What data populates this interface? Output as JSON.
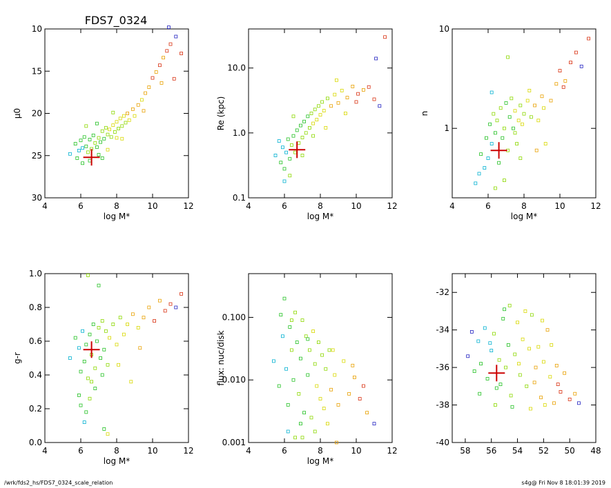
{
  "title": "FDS7_0324",
  "footer_left": "/wrk/fds2_hs/FDS7_0324_scale_relation",
  "footer_right": "s4g@  Fri Nov  8 18:01:39 2019",
  "chart_data": [
    {
      "type": "scatter",
      "title": "FDS7_0324",
      "xlabel": "log M*",
      "ylabel": "μ0",
      "xlim": [
        4,
        12
      ],
      "ylim": [
        30,
        10
      ],
      "xticks": [
        "4",
        "6",
        "8",
        "10",
        "12"
      ],
      "yticks": [
        "10",
        "15",
        "20",
        "25",
        "30"
      ],
      "target": {
        "x": 6.6,
        "y": 25.2
      },
      "points": [
        [
          5.4,
          24.8
        ],
        [
          5.7,
          23.6
        ],
        [
          5.9,
          24.4
        ],
        [
          6.0,
          23.2
        ],
        [
          6.1,
          24.1
        ],
        [
          6.2,
          22.8
        ],
        [
          6.3,
          23.9
        ],
        [
          6.4,
          24.6
        ],
        [
          6.5,
          23.1
        ],
        [
          6.6,
          24.2
        ],
        [
          6.7,
          22.6
        ],
        [
          6.8,
          23.5
        ],
        [
          6.9,
          24.0
        ],
        [
          7.0,
          22.9
        ],
        [
          7.1,
          23.4
        ],
        [
          7.2,
          22.1
        ],
        [
          7.3,
          23.0
        ],
        [
          7.4,
          21.7
        ],
        [
          7.5,
          22.5
        ],
        [
          7.6,
          21.9
        ],
        [
          7.7,
          22.8
        ],
        [
          7.8,
          21.4
        ],
        [
          7.9,
          22.2
        ],
        [
          8.0,
          21.0
        ],
        [
          8.1,
          21.8
        ],
        [
          8.2,
          20.6
        ],
        [
          8.3,
          21.5
        ],
        [
          8.4,
          20.3
        ],
        [
          8.5,
          21.1
        ],
        [
          8.6,
          20.0
        ],
        [
          8.7,
          20.8
        ],
        [
          8.9,
          19.5
        ],
        [
          9.0,
          20.3
        ],
        [
          9.2,
          19.0
        ],
        [
          9.4,
          18.4
        ],
        [
          9.6,
          17.6
        ],
        [
          9.8,
          16.9
        ],
        [
          10.0,
          15.8
        ],
        [
          10.2,
          15.1
        ],
        [
          10.4,
          14.3
        ],
        [
          10.6,
          13.4
        ],
        [
          10.8,
          12.6
        ],
        [
          11.0,
          11.8
        ],
        [
          11.3,
          10.9
        ],
        [
          11.6,
          12.9
        ],
        [
          10.9,
          9.8
        ],
        [
          11.2,
          15.9
        ],
        [
          6.3,
          21.5
        ],
        [
          6.5,
          25.6
        ],
        [
          5.8,
          25.3
        ],
        [
          7.0,
          24.9
        ],
        [
          7.5,
          24.3
        ],
        [
          6.9,
          21.2
        ],
        [
          8.3,
          23.0
        ],
        [
          7.8,
          19.9
        ],
        [
          9.5,
          19.7
        ],
        [
          10.5,
          16.4
        ],
        [
          6.1,
          25.9
        ],
        [
          7.2,
          25.3
        ],
        [
          8.0,
          22.9
        ]
      ]
    },
    {
      "type": "scatter",
      "xlabel": "log M*",
      "ylabel": "Re (kpc)",
      "log_y": true,
      "xlim": [
        4,
        12
      ],
      "ylim": [
        0.1,
        40
      ],
      "xticks": [
        "4",
        "6",
        "8",
        "10",
        "12"
      ],
      "yticks": [
        "0.1",
        "1.0",
        "10.0"
      ],
      "target": {
        "x": 6.7,
        "y": 0.55
      },
      "points": [
        [
          5.5,
          0.45
        ],
        [
          5.8,
          0.35
        ],
        [
          5.9,
          0.6
        ],
        [
          6.0,
          0.28
        ],
        [
          6.1,
          0.5
        ],
        [
          6.2,
          0.8
        ],
        [
          6.3,
          0.4
        ],
        [
          6.4,
          0.65
        ],
        [
          6.5,
          0.9
        ],
        [
          6.6,
          0.5
        ],
        [
          6.7,
          1.1
        ],
        [
          6.8,
          0.7
        ],
        [
          6.9,
          1.3
        ],
        [
          7.0,
          0.85
        ],
        [
          7.1,
          1.5
        ],
        [
          7.2,
          1.0
        ],
        [
          7.3,
          1.8
        ],
        [
          7.4,
          1.2
        ],
        [
          7.5,
          2.0
        ],
        [
          7.6,
          1.4
        ],
        [
          7.7,
          2.3
        ],
        [
          7.8,
          1.6
        ],
        [
          7.9,
          2.6
        ],
        [
          8.0,
          1.9
        ],
        [
          8.1,
          3.0
        ],
        [
          8.2,
          2.2
        ],
        [
          8.4,
          3.4
        ],
        [
          8.6,
          2.6
        ],
        [
          8.8,
          3.9
        ],
        [
          9.0,
          2.9
        ],
        [
          9.2,
          4.5
        ],
        [
          9.5,
          3.5
        ],
        [
          9.8,
          5.2
        ],
        [
          10.1,
          4.0
        ],
        [
          10.4,
          4.6
        ],
        [
          10.7,
          5.1
        ],
        [
          11.0,
          3.3
        ],
        [
          11.3,
          2.6
        ],
        [
          11.6,
          30.0
        ],
        [
          11.1,
          14.0
        ],
        [
          6.0,
          0.18
        ],
        [
          6.3,
          0.22
        ],
        [
          5.7,
          0.75
        ],
        [
          7.0,
          0.45
        ],
        [
          7.6,
          0.9
        ],
        [
          8.3,
          1.2
        ],
        [
          9.4,
          2.0
        ],
        [
          6.5,
          1.8
        ],
        [
          8.9,
          6.5
        ],
        [
          10.0,
          3.0
        ]
      ]
    },
    {
      "type": "scatter",
      "xlabel": "log M*",
      "ylabel": "n",
      "log_y": true,
      "xlim": [
        4,
        12
      ],
      "ylim": [
        0.2,
        10
      ],
      "xticks": [
        "4",
        "6",
        "8",
        "10",
        "12"
      ],
      "yticks": [
        "1",
        "10"
      ],
      "target": {
        "x": 6.6,
        "y": 0.6
      },
      "points": [
        [
          5.3,
          0.28
        ],
        [
          5.6,
          0.55
        ],
        [
          5.8,
          0.4
        ],
        [
          5.9,
          0.8
        ],
        [
          6.0,
          0.5
        ],
        [
          6.1,
          1.1
        ],
        [
          6.2,
          0.7
        ],
        [
          6.3,
          1.4
        ],
        [
          6.4,
          0.9
        ],
        [
          6.5,
          1.2
        ],
        [
          6.6,
          0.45
        ],
        [
          6.7,
          1.6
        ],
        [
          6.8,
          0.8
        ],
        [
          6.9,
          1.0
        ],
        [
          7.0,
          1.8
        ],
        [
          7.1,
          0.6
        ],
        [
          7.2,
          1.3
        ],
        [
          7.3,
          2.0
        ],
        [
          7.4,
          1.0
        ],
        [
          7.5,
          1.5
        ],
        [
          7.6,
          0.7
        ],
        [
          7.7,
          1.2
        ],
        [
          7.8,
          1.7
        ],
        [
          7.9,
          1.1
        ],
        [
          8.0,
          1.4
        ],
        [
          8.2,
          1.9
        ],
        [
          8.4,
          1.3
        ],
        [
          8.6,
          1.7
        ],
        [
          8.8,
          1.2
        ],
        [
          9.0,
          2.1
        ],
        [
          9.2,
          0.7
        ],
        [
          9.5,
          1.9
        ],
        [
          9.8,
          2.8
        ],
        [
          10.0,
          3.8
        ],
        [
          10.3,
          3.0
        ],
        [
          10.6,
          4.6
        ],
        [
          10.9,
          5.8
        ],
        [
          11.2,
          4.2
        ],
        [
          11.6,
          8.0
        ],
        [
          7.1,
          5.2
        ],
        [
          6.2,
          2.3
        ],
        [
          6.9,
          0.3
        ],
        [
          7.8,
          0.5
        ],
        [
          8.3,
          2.4
        ],
        [
          9.1,
          1.6
        ],
        [
          10.2,
          2.6
        ],
        [
          5.5,
          0.35
        ],
        [
          6.4,
          0.25
        ],
        [
          7.5,
          0.9
        ],
        [
          8.7,
          0.6
        ]
      ]
    },
    {
      "type": "scatter",
      "xlabel": "log M*",
      "ylabel": "g-r",
      "xlim": [
        4,
        12
      ],
      "ylim": [
        0.0,
        1.0
      ],
      "xticks": [
        "4",
        "6",
        "8",
        "10",
        "12"
      ],
      "yticks": [
        "0.0",
        "0.2",
        "0.4",
        "0.6",
        "0.8",
        "1.0"
      ],
      "target": {
        "x": 6.6,
        "y": 0.55
      },
      "points": [
        [
          5.4,
          0.5
        ],
        [
          5.7,
          0.62
        ],
        [
          5.9,
          0.56
        ],
        [
          6.0,
          0.42
        ],
        [
          6.1,
          0.66
        ],
        [
          6.2,
          0.48
        ],
        [
          6.3,
          0.58
        ],
        [
          6.4,
          0.38
        ],
        [
          6.5,
          0.64
        ],
        [
          6.6,
          0.52
        ],
        [
          6.7,
          0.7
        ],
        [
          6.8,
          0.44
        ],
        [
          6.9,
          0.6
        ],
        [
          7.0,
          0.68
        ],
        [
          7.1,
          0.5
        ],
        [
          7.2,
          0.72
        ],
        [
          7.3,
          0.55
        ],
        [
          7.4,
          0.66
        ],
        [
          7.5,
          0.46
        ],
        [
          7.6,
          0.62
        ],
        [
          7.8,
          0.7
        ],
        [
          8.0,
          0.58
        ],
        [
          8.2,
          0.74
        ],
        [
          8.4,
          0.64
        ],
        [
          8.6,
          0.7
        ],
        [
          8.9,
          0.76
        ],
        [
          9.2,
          0.68
        ],
        [
          9.5,
          0.74
        ],
        [
          9.8,
          0.8
        ],
        [
          10.1,
          0.72
        ],
        [
          10.4,
          0.84
        ],
        [
          10.7,
          0.78
        ],
        [
          11.0,
          0.82
        ],
        [
          11.3,
          0.8
        ],
        [
          11.6,
          0.88
        ],
        [
          6.4,
          0.99
        ],
        [
          7.0,
          0.93
        ],
        [
          6.0,
          0.22
        ],
        [
          6.2,
          0.12
        ],
        [
          6.5,
          0.26
        ],
        [
          6.8,
          0.32
        ],
        [
          5.9,
          0.28
        ],
        [
          6.3,
          0.18
        ],
        [
          6.6,
          0.36
        ],
        [
          7.3,
          0.08
        ],
        [
          7.5,
          0.05
        ],
        [
          7.2,
          0.4
        ],
        [
          8.1,
          0.46
        ],
        [
          8.8,
          0.36
        ],
        [
          9.3,
          0.56
        ]
      ]
    },
    {
      "type": "scatter",
      "xlabel": "log M*",
      "ylabel": "flux: nuc/disk",
      "log_y": true,
      "xlim": [
        4,
        12
      ],
      "ylim": [
        0.001,
        0.5
      ],
      "xticks": [
        "4",
        "6",
        "8",
        "10",
        "12"
      ],
      "yticks": [
        "0.001",
        "0.010",
        "0.100"
      ],
      "target": null,
      "points": [
        [
          5.4,
          0.02
        ],
        [
          5.7,
          0.008
        ],
        [
          5.9,
          0.05
        ],
        [
          6.0,
          0.2
        ],
        [
          6.1,
          0.015
        ],
        [
          6.2,
          0.004
        ],
        [
          6.3,
          0.07
        ],
        [
          6.4,
          0.03
        ],
        [
          6.5,
          0.01
        ],
        [
          6.6,
          0.12
        ],
        [
          6.7,
          0.04
        ],
        [
          6.8,
          0.006
        ],
        [
          6.9,
          0.022
        ],
        [
          7.0,
          0.09
        ],
        [
          7.1,
          0.003
        ],
        [
          7.2,
          0.05
        ],
        [
          7.3,
          0.012
        ],
        [
          7.4,
          0.03
        ],
        [
          7.5,
          0.0025
        ],
        [
          7.6,
          0.06
        ],
        [
          7.7,
          0.018
        ],
        [
          7.8,
          0.008
        ],
        [
          7.9,
          0.04
        ],
        [
          8.0,
          0.005
        ],
        [
          8.1,
          0.025
        ],
        [
          8.2,
          0.0035
        ],
        [
          8.3,
          0.015
        ],
        [
          8.4,
          0.002
        ],
        [
          8.5,
          0.03
        ],
        [
          8.6,
          0.007
        ],
        [
          8.8,
          0.012
        ],
        [
          9.0,
          0.004
        ],
        [
          9.3,
          0.02
        ],
        [
          9.6,
          0.006
        ],
        [
          9.9,
          0.011
        ],
        [
          10.2,
          0.005
        ],
        [
          10.6,
          0.003
        ],
        [
          11.0,
          0.002
        ],
        [
          6.2,
          0.0015
        ],
        [
          7.0,
          0.0012
        ],
        [
          8.7,
          0.03
        ],
        [
          6.4,
          0.09
        ],
        [
          7.3,
          0.045
        ],
        [
          5.8,
          0.11
        ],
        [
          6.9,
          0.002
        ],
        [
          8.9,
          0.001
        ],
        [
          9.8,
          0.017
        ],
        [
          10.4,
          0.008
        ],
        [
          7.7,
          0.0015
        ],
        [
          6.6,
          0.0012
        ]
      ]
    },
    {
      "type": "scatter",
      "xlabel": "",
      "ylabel": "",
      "xlim": [
        59,
        48
      ],
      "ylim": [
        -40,
        -31
      ],
      "xticks": [
        "58",
        "56",
        "54",
        "52",
        "50",
        "48"
      ],
      "yticks": [
        "-32",
        "-34",
        "-36",
        "-38",
        "-40"
      ],
      "target": {
        "x": 55.6,
        "y": -36.3
      },
      "points": [
        [
          57.8,
          -35.4
        ],
        [
          57.3,
          -36.2
        ],
        [
          57.0,
          -34.6
        ],
        [
          56.8,
          -35.8
        ],
        [
          56.5,
          -33.9
        ],
        [
          56.3,
          -36.6
        ],
        [
          56.0,
          -35.1
        ],
        [
          55.8,
          -34.2
        ],
        [
          55.6,
          -37.1
        ],
        [
          55.4,
          -35.6
        ],
        [
          55.1,
          -33.4
        ],
        [
          54.9,
          -36.0
        ],
        [
          54.7,
          -34.8
        ],
        [
          54.5,
          -37.5
        ],
        [
          54.2,
          -35.3
        ],
        [
          54.0,
          -33.6
        ],
        [
          53.8,
          -36.4
        ],
        [
          53.6,
          -34.5
        ],
        [
          53.3,
          -37.0
        ],
        [
          53.1,
          -35.0
        ],
        [
          52.9,
          -33.2
        ],
        [
          52.7,
          -36.8
        ],
        [
          52.4,
          -34.9
        ],
        [
          52.2,
          -37.6
        ],
        [
          52.0,
          -35.7
        ],
        [
          51.7,
          -34.0
        ],
        [
          51.5,
          -36.5
        ],
        [
          51.2,
          -37.9
        ],
        [
          51.0,
          -35.9
        ],
        [
          50.7,
          -37.3
        ],
        [
          50.4,
          -36.3
        ],
        [
          50.0,
          -37.7
        ],
        [
          49.6,
          -37.4
        ],
        [
          49.3,
          -37.9
        ],
        [
          55.0,
          -32.9
        ],
        [
          53.4,
          -33.0
        ],
        [
          52.1,
          -33.5
        ],
        [
          56.9,
          -37.4
        ],
        [
          57.5,
          -34.1
        ],
        [
          55.7,
          -38.0
        ],
        [
          54.4,
          -38.1
        ],
        [
          53.0,
          -38.2
        ],
        [
          51.9,
          -38.0
        ],
        [
          54.6,
          -32.7
        ],
        [
          56.1,
          -34.7
        ],
        [
          53.9,
          -35.8
        ],
        [
          55.3,
          -36.9
        ],
        [
          52.6,
          -36.0
        ],
        [
          51.4,
          -34.8
        ],
        [
          50.9,
          -36.9
        ]
      ]
    }
  ]
}
